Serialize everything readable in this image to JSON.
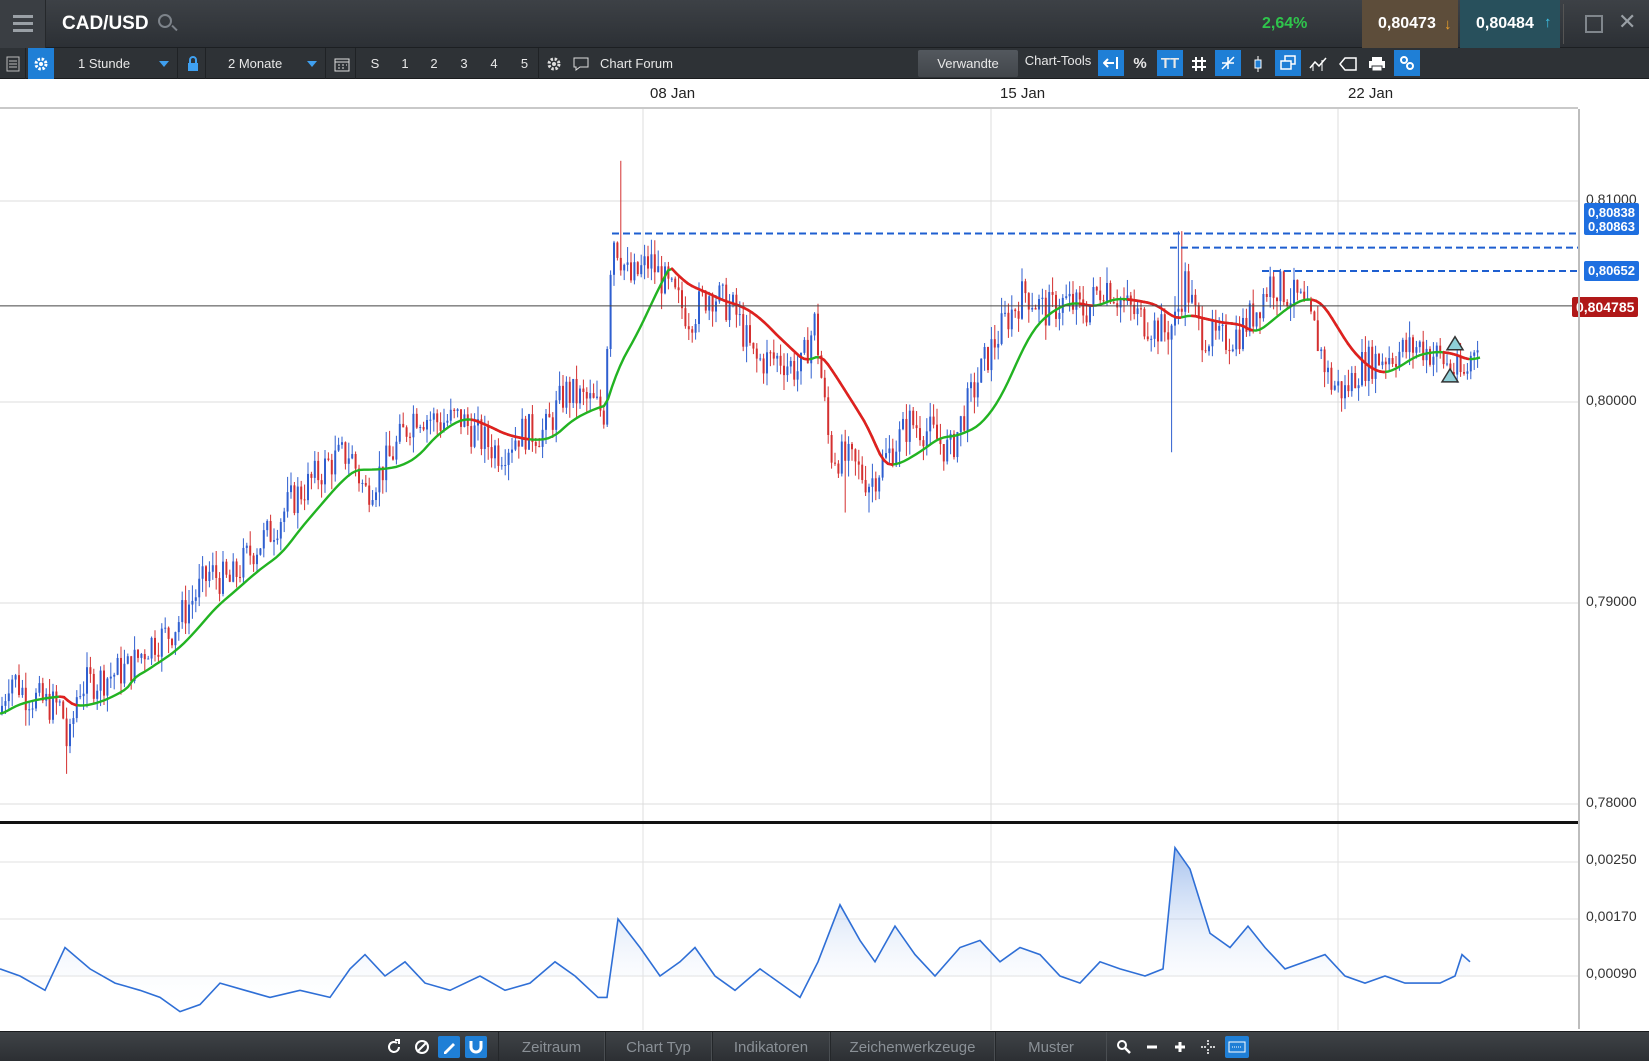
{
  "window": {
    "symbol": "CAD/USD",
    "change": "2,64%",
    "sell_price": "0,80473",
    "buy_price": "0,80484"
  },
  "toolbar": {
    "interval": "1 Stunde",
    "range": "2 Monate",
    "preset_s": "S",
    "preset_1": "1",
    "preset_2": "2",
    "preset_3": "3",
    "preset_4": "4",
    "preset_5": "5",
    "chart_forum": "Chart Forum",
    "verwandte": "Verwandte",
    "chart_tools": "Chart-Tools",
    "percent": "%",
    "text_tool": "TT"
  },
  "date_axis": [
    "08 Jan",
    "15 Jan",
    "22 Jan"
  ],
  "price_axis": [
    "0,81000",
    "0,80000",
    "0,79000",
    "0,78000"
  ],
  "price_tags": {
    "level1": "0,80838",
    "level2": "0,80863",
    "level3": "0,80652",
    "current": "0,804785"
  },
  "osc_axis": [
    "0,00250",
    "0,00170",
    "0,00090"
  ],
  "bottom": {
    "zeitraum": "Zeitraum",
    "chart_typ": "Chart Typ",
    "indikatoren": "Indikatoren",
    "zeichenwerkzeuge": "Zeichenwerkzeuge",
    "muster": "Muster"
  },
  "colors": {
    "bull": "#2f5fd0",
    "bear": "#d43030",
    "ma_up": "#22b322",
    "ma_down": "#e02020",
    "level_line": "#1e5fd0",
    "osc_line": "#2f6fd6",
    "accent": "#1f7fd6"
  },
  "icons": [
    "menu-icon",
    "search-icon",
    "arrow-down-icon",
    "arrow-up-icon",
    "restore-icon",
    "close-icon",
    "list-icon",
    "gear-icon",
    "lock-icon",
    "calendar-icon",
    "chat-icon",
    "grid-icon",
    "refresh-icon",
    "zoom-icon",
    "minus-icon",
    "plus-icon",
    "crosshair-icon",
    "print-icon"
  ]
}
